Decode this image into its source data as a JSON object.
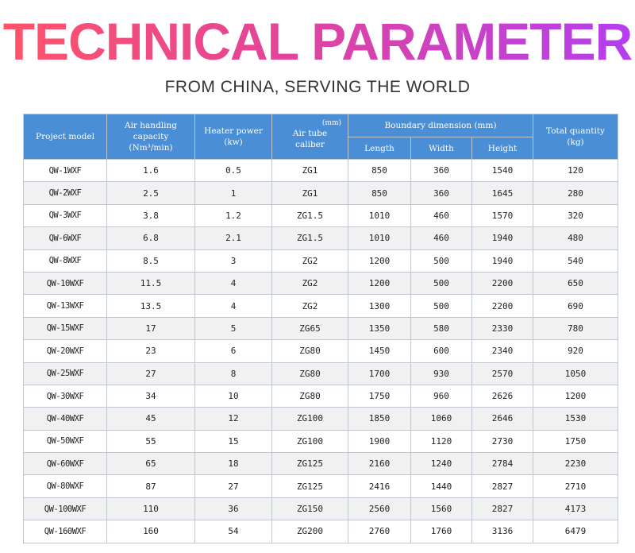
{
  "title": "TECHNICAL PARAMETER",
  "subtitle": "FROM CHINA, SERVING THE WORLD",
  "colors": {
    "header_bg": "#4a8ed6",
    "title_gradient_start": "#ff5468",
    "title_gradient_end": "#b43ef0"
  },
  "table": {
    "headers": {
      "model": "Project model",
      "air_capacity_line1": "Air handling",
      "air_capacity_line2": "capacity",
      "air_capacity_unit": "(Nm³/min)",
      "heater_line1": "Heater power",
      "heater_unit": "(kw)",
      "tube_unit": "(mm)",
      "tube_line1": "Air tube",
      "tube_line2": "caliber",
      "boundary": "Boundary dimension (mm)",
      "length": "Length",
      "width": "Width",
      "height": "Height",
      "total_line1": "Total quantity",
      "total_unit": "(kg)"
    },
    "rows": [
      [
        "QW-1WXF",
        "1.6",
        "0.5",
        "ZG1",
        "850",
        "360",
        "1540",
        "120"
      ],
      [
        "QW-2WXF",
        "2.5",
        "1",
        "ZG1",
        "850",
        "360",
        "1645",
        "280"
      ],
      [
        "QW-3WXF",
        "3.8",
        "1.2",
        "ZG1.5",
        "1010",
        "460",
        "1570",
        "320"
      ],
      [
        "QW-6WXF",
        "6.8",
        "2.1",
        "ZG1.5",
        "1010",
        "460",
        "1940",
        "480"
      ],
      [
        "QW-8WXF",
        "8.5",
        "3",
        "ZG2",
        "1200",
        "500",
        "1940",
        "540"
      ],
      [
        "QW-10WXF",
        "11.5",
        "4",
        "ZG2",
        "1200",
        "500",
        "2200",
        "650"
      ],
      [
        "QW-13WXF",
        "13.5",
        "4",
        "ZG2",
        "1300",
        "500",
        "2200",
        "690"
      ],
      [
        "QW-15WXF",
        "17",
        "5",
        "ZG65",
        "1350",
        "580",
        "2330",
        "780"
      ],
      [
        "QW-20WXF",
        "23",
        "6",
        "ZG80",
        "1450",
        "600",
        "2340",
        "920"
      ],
      [
        "QW-25WXF",
        "27",
        "8",
        "ZG80",
        "1700",
        "930",
        "2570",
        "1050"
      ],
      [
        "QW-30WXF",
        "34",
        "10",
        "ZG80",
        "1750",
        "960",
        "2626",
        "1200"
      ],
      [
        "QW-40WXF",
        "45",
        "12",
        "ZG100",
        "1850",
        "1060",
        "2646",
        "1530"
      ],
      [
        "QW-50WXF",
        "55",
        "15",
        "ZG100",
        "1900",
        "1120",
        "2730",
        "1750"
      ],
      [
        "QW-60WXF",
        "65",
        "18",
        "ZG125",
        "2160",
        "1240",
        "2784",
        "2230"
      ],
      [
        "QW-80WXF",
        "87",
        "27",
        "ZG125",
        "2416",
        "1440",
        "2827",
        "2710"
      ],
      [
        "QW-100WXF",
        "110",
        "36",
        "ZG150",
        "2560",
        "1560",
        "2827",
        "4173"
      ],
      [
        "QW-160WXF",
        "160",
        "54",
        "ZG200",
        "2760",
        "1760",
        "3136",
        "6479"
      ]
    ]
  }
}
